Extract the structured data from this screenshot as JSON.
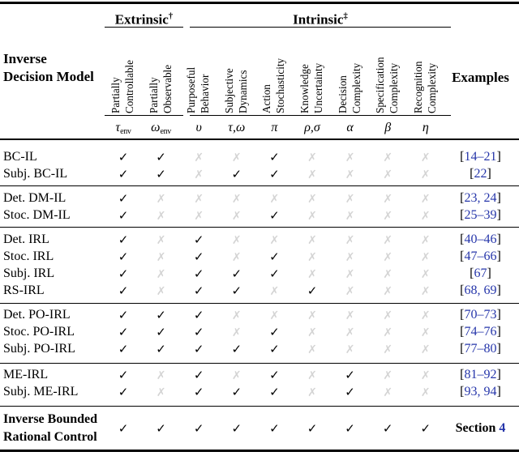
{
  "header": {
    "row_title_line1": "Inverse",
    "row_title_line2": "Decision Model",
    "extrinsic": "Extrinsic",
    "extrinsic_mark": "†",
    "intrinsic": "Intrinsic",
    "intrinsic_mark": "‡",
    "examples": "Examples"
  },
  "columns": [
    {
      "id": "partially-controllable",
      "line1": "Partially",
      "line2": "Controllable",
      "symbol": "τ",
      "symbol_sub": "env"
    },
    {
      "id": "partially-observable",
      "line1": "Partially",
      "line2": "Observable",
      "symbol": "ω",
      "symbol_sub": "env"
    },
    {
      "id": "purposeful-behavior",
      "line1": "Purposeful",
      "line2": "Behavior",
      "symbol": "υ"
    },
    {
      "id": "subjective-dynamics",
      "line1": "Subjective",
      "line2": "Dynamics",
      "symbol": "τ,ω"
    },
    {
      "id": "action-stochasticity",
      "line1": "Action",
      "line2": "Stochasticity",
      "symbol": "π"
    },
    {
      "id": "knowledge-uncertainty",
      "line1": "Knowledge",
      "line2": "Uncertainty",
      "symbol": "ρ,σ"
    },
    {
      "id": "decision-complexity",
      "line1": "Decision",
      "line2": "Complexity",
      "symbol": "α"
    },
    {
      "id": "specification-complexity",
      "line1": "Specification",
      "line2": "Complexity",
      "symbol": "β"
    },
    {
      "id": "recognition-complexity",
      "line1": "Recognition",
      "line2": "Complexity",
      "symbol": "η"
    }
  ],
  "marks": {
    "check": "✓",
    "cross": "✗"
  },
  "colors": {
    "check": "#000000",
    "cross": "#d4d4d4",
    "link": "#2636aa"
  },
  "groups": [
    {
      "rows": [
        {
          "name": "BC-IL",
          "marks": [
            1,
            1,
            0,
            0,
            1,
            0,
            0,
            0,
            0
          ],
          "example": {
            "pre": "[",
            "link": "14–21",
            "post": "]"
          }
        },
        {
          "name": "Subj. BC-IL",
          "marks": [
            1,
            1,
            0,
            1,
            1,
            0,
            0,
            0,
            0
          ],
          "example": {
            "pre": "[",
            "link": "22",
            "post": "]"
          }
        }
      ]
    },
    {
      "rows": [
        {
          "name": "Det. DM-IL",
          "marks": [
            1,
            0,
            0,
            0,
            0,
            0,
            0,
            0,
            0
          ],
          "example": {
            "pre": "[",
            "link": "23, 24",
            "post": "]"
          }
        },
        {
          "name": "Stoc. DM-IL",
          "marks": [
            1,
            0,
            0,
            0,
            1,
            0,
            0,
            0,
            0
          ],
          "example": {
            "pre": "[",
            "link": "25–39",
            "post": "]"
          }
        }
      ]
    },
    {
      "rows": [
        {
          "name": "Det. IRL",
          "marks": [
            1,
            0,
            1,
            0,
            0,
            0,
            0,
            0,
            0
          ],
          "example": {
            "pre": "[",
            "link": "40–46",
            "post": "]"
          }
        },
        {
          "name": "Stoc. IRL",
          "marks": [
            1,
            0,
            1,
            0,
            1,
            0,
            0,
            0,
            0
          ],
          "example": {
            "pre": "[",
            "link": "47–66",
            "post": "]"
          }
        },
        {
          "name": "Subj. IRL",
          "marks": [
            1,
            0,
            1,
            1,
            1,
            0,
            0,
            0,
            0
          ],
          "example": {
            "pre": "[",
            "link": "67",
            "post": "]"
          }
        },
        {
          "name": "RS-IRL",
          "marks": [
            1,
            0,
            1,
            1,
            0,
            1,
            0,
            0,
            0
          ],
          "example": {
            "pre": "[",
            "link": "68, 69",
            "post": "]"
          }
        }
      ]
    },
    {
      "rows": [
        {
          "name": "Det. PO-IRL",
          "marks": [
            1,
            1,
            1,
            0,
            0,
            0,
            0,
            0,
            0
          ],
          "example": {
            "pre": "[",
            "link": "70–73",
            "post": "]"
          }
        },
        {
          "name": "Stoc. PO-IRL",
          "marks": [
            1,
            1,
            1,
            0,
            1,
            0,
            0,
            0,
            0
          ],
          "example": {
            "pre": "[",
            "link": "74–76",
            "post": "]"
          }
        },
        {
          "name": "Subj. PO-IRL",
          "marks": [
            1,
            1,
            1,
            1,
            1,
            0,
            0,
            0,
            0
          ],
          "example": {
            "pre": "[",
            "link": "77–80",
            "post": "]"
          }
        }
      ]
    },
    {
      "rows": [
        {
          "name": "ME-IRL",
          "marks": [
            1,
            0,
            1,
            0,
            1,
            0,
            1,
            0,
            0
          ],
          "example": {
            "pre": "[",
            "link": "81–92",
            "post": "]"
          }
        },
        {
          "name": "Subj. ME-IRL",
          "marks": [
            1,
            0,
            1,
            1,
            1,
            0,
            1,
            0,
            0
          ],
          "example": {
            "pre": "[",
            "link": "93, 94",
            "post": "]"
          }
        }
      ]
    },
    {
      "rows": [
        {
          "name": "Inverse Bounded",
          "name_line2": "Rational Control",
          "bold": true,
          "marks": [
            1,
            1,
            1,
            1,
            1,
            1,
            1,
            1,
            1
          ],
          "example": {
            "pre": "Section ",
            "link": "4",
            "post": ""
          }
        }
      ]
    }
  ]
}
